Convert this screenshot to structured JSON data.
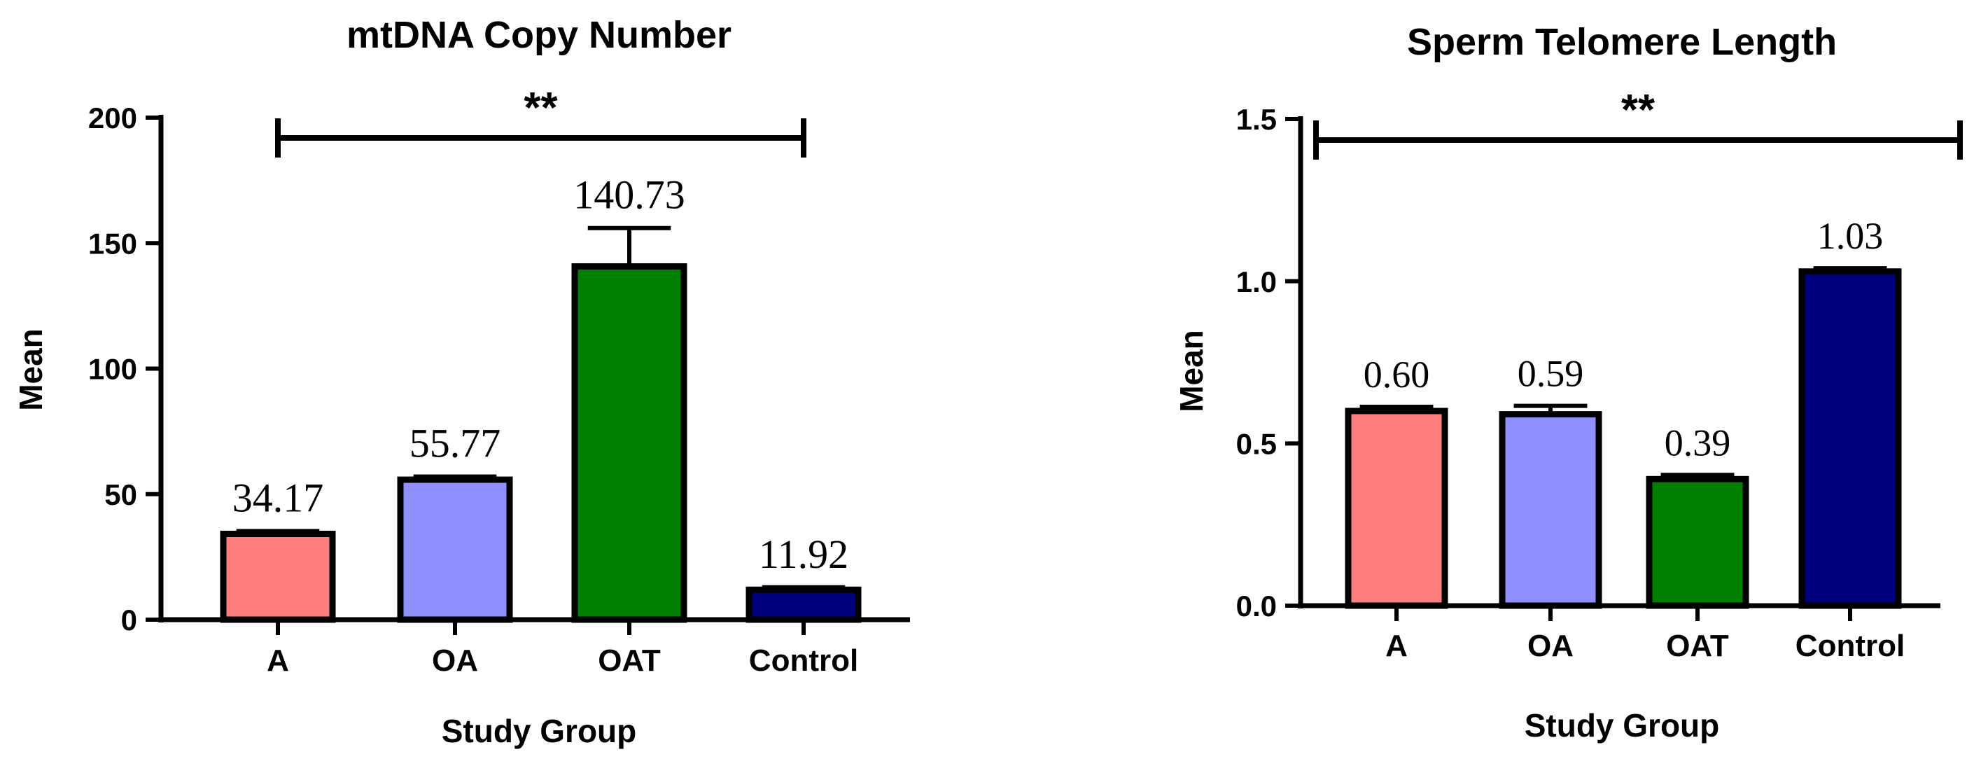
{
  "chart_data": [
    {
      "type": "bar",
      "title": "mtDNA Copy Number",
      "xlabel": "Study Group",
      "ylabel": "Mean",
      "ylim": [
        0,
        200
      ],
      "yticks": [
        "0",
        "50",
        "100",
        "150",
        "200"
      ],
      "ytick_values": [
        0,
        50,
        100,
        150,
        200
      ],
      "categories": [
        "A",
        "OA",
        "OAT",
        "Control"
      ],
      "values": [
        34.17,
        55.77,
        140.73,
        11.92
      ],
      "value_labels": [
        "34.17",
        "55.77",
        "140.73",
        "11.92"
      ],
      "error_upper": [
        35.3,
        57.0,
        156.0,
        12.9
      ],
      "colors": [
        "#FF7F7F",
        "#8F8FFF",
        "#007F00",
        "#00007F"
      ],
      "significance": {
        "label": "**",
        "from": "A",
        "to": "Control"
      }
    },
    {
      "type": "bar",
      "title": "Sperm Telomere Length",
      "xlabel": "Study Group",
      "ylabel": "Mean",
      "ylim": [
        0,
        1.5
      ],
      "yticks": [
        "0.0",
        "0.5",
        "1.0",
        "1.5"
      ],
      "ytick_values": [
        0,
        0.5,
        1.0,
        1.5
      ],
      "categories": [
        "A",
        "OA",
        "OAT",
        "Control"
      ],
      "values": [
        0.6,
        0.59,
        0.39,
        1.03
      ],
      "value_labels": [
        "0.60",
        "0.59",
        "0.39",
        "1.03"
      ],
      "error_upper": [
        0.613,
        0.616,
        0.403,
        1.04
      ],
      "colors": [
        "#FF7F7F",
        "#8F8FFF",
        "#007F00",
        "#00007F"
      ],
      "significance": {
        "label": "**",
        "from": "axis",
        "to": "end"
      }
    }
  ]
}
